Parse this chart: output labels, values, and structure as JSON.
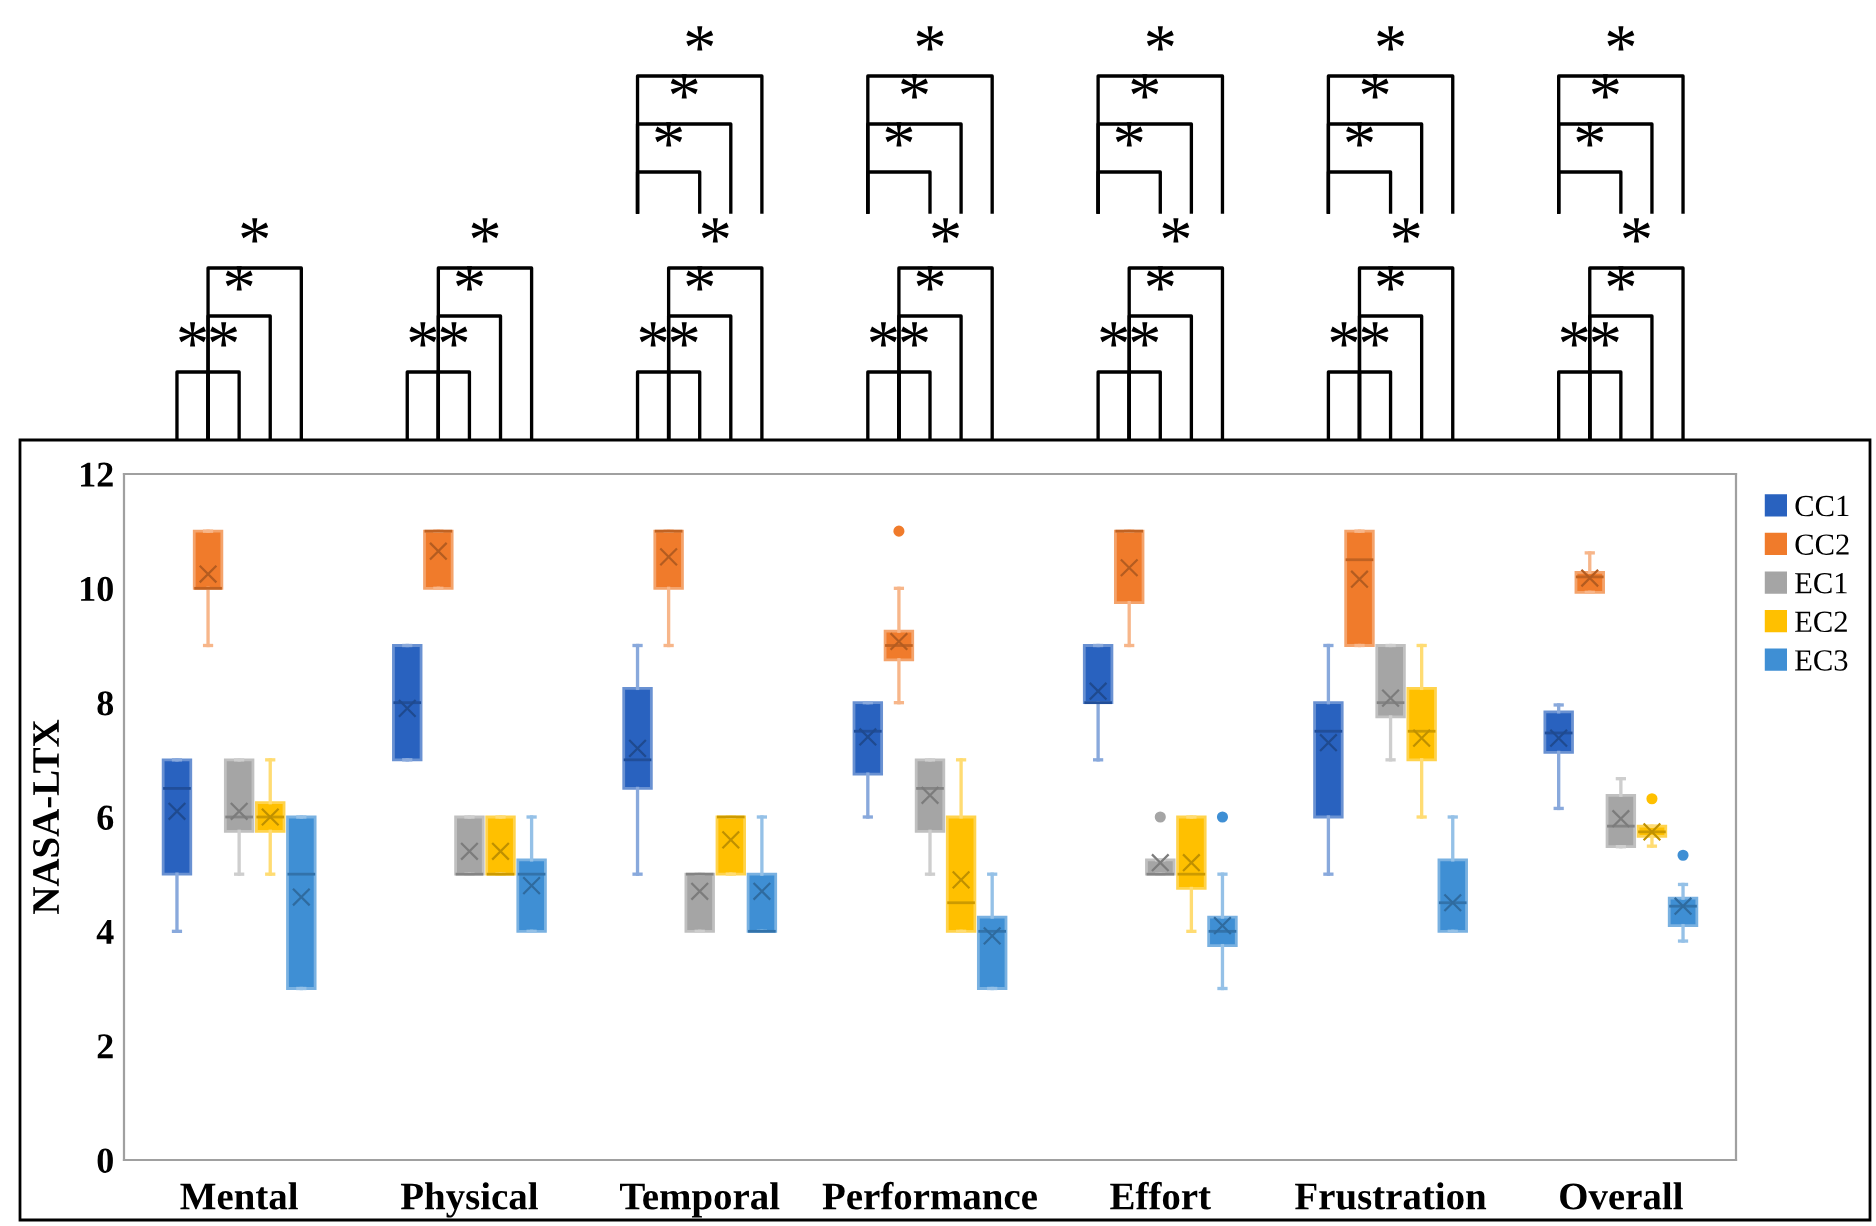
{
  "chart_data": {
    "type": "box",
    "ylabel": "NASA-LTX",
    "categories": [
      "Mental",
      "Physical",
      "Temporal",
      "Performance",
      "Effort",
      "Frustration",
      "Overall"
    ],
    "ylim": [
      0,
      12
    ],
    "yticks": [
      0,
      2,
      4,
      6,
      8,
      10,
      12
    ],
    "grid": false,
    "legend": "top right",
    "series": [
      {
        "name": "CC1",
        "color": "#2962bf",
        "boxes": [
          {
            "low": 4,
            "q1": 5,
            "median": 6.5,
            "q3": 7,
            "high": 7,
            "mean": 6.1
          },
          {
            "low": 7,
            "q1": 7,
            "median": 8,
            "q3": 9,
            "high": 9,
            "mean": 7.9
          },
          {
            "low": 5,
            "q1": 6.5,
            "median": 7,
            "q3": 8.25,
            "high": 9,
            "mean": 7.2
          },
          {
            "low": 6,
            "q1": 6.75,
            "median": 7.5,
            "q3": 8,
            "high": 8,
            "mean": 7.4
          },
          {
            "low": 7,
            "q1": 8,
            "median": 8,
            "q3": 9,
            "high": 9,
            "mean": 8.2
          },
          {
            "low": 5,
            "q1": 6,
            "median": 7.5,
            "q3": 8,
            "high": 9,
            "mean": 7.3
          },
          {
            "low": 6.15,
            "q1": 7.13,
            "median": 7.47,
            "q3": 7.84,
            "high": 7.96,
            "mean": 7.38
          }
        ]
      },
      {
        "name": "CC2",
        "color": "#f07b2b",
        "boxes": [
          {
            "low": 9,
            "q1": 10,
            "median": 10,
            "q3": 11,
            "high": 11,
            "mean": 10.25
          },
          {
            "low": 10,
            "q1": 10,
            "median": 11,
            "q3": 11,
            "high": 11,
            "mean": 10.65
          },
          {
            "low": 9,
            "q1": 10,
            "median": 11,
            "q3": 11,
            "high": 11,
            "mean": 10.55
          },
          {
            "low": 8,
            "q1": 8.75,
            "median": 9,
            "q3": 9.25,
            "high": 10,
            "mean": 9.07,
            "outliers": [
              11
            ]
          },
          {
            "low": 9,
            "q1": 9.75,
            "median": 11,
            "q3": 11,
            "high": 11,
            "mean": 10.36
          },
          {
            "low": 9,
            "q1": 9,
            "median": 10.5,
            "q3": 11,
            "high": 11,
            "mean": 10.16
          },
          {
            "low": 9.93,
            "q1": 9.93,
            "median": 10.2,
            "q3": 10.28,
            "high": 10.62,
            "mean": 10.18
          }
        ]
      },
      {
        "name": "EC1",
        "color": "#a5a5a5",
        "boxes": [
          {
            "low": 5,
            "q1": 5.75,
            "median": 6,
            "q3": 7,
            "high": 7,
            "mean": 6.1
          },
          {
            "low": 5,
            "q1": 5,
            "median": 5,
            "q3": 6,
            "high": 6,
            "mean": 5.4
          },
          {
            "low": 4,
            "q1": 4,
            "median": 5,
            "q3": 5,
            "high": 5,
            "mean": 4.7
          },
          {
            "low": 5,
            "q1": 5.75,
            "median": 6.5,
            "q3": 7,
            "high": 7,
            "mean": 6.38
          },
          {
            "low": 5,
            "q1": 5,
            "median": 5,
            "q3": 5.25,
            "high": 5.25,
            "mean": 5.2,
            "outliers": [
              6
            ]
          },
          {
            "low": 7,
            "q1": 7.75,
            "median": 8,
            "q3": 9,
            "high": 9,
            "mean": 8.08
          },
          {
            "low": 5.48,
            "q1": 5.48,
            "median": 5.84,
            "q3": 6.38,
            "high": 6.67,
            "mean": 5.97
          }
        ]
      },
      {
        "name": "EC2",
        "color": "#ffc000",
        "boxes": [
          {
            "low": 5,
            "q1": 5.75,
            "median": 6,
            "q3": 6.25,
            "high": 7,
            "mean": 6.0
          },
          {
            "low": 5,
            "q1": 5,
            "median": 5,
            "q3": 6,
            "high": 6,
            "mean": 5.4
          },
          {
            "low": 5,
            "q1": 5,
            "median": 6,
            "q3": 6,
            "high": 6,
            "mean": 5.6
          },
          {
            "low": 4,
            "q1": 4,
            "median": 4.5,
            "q3": 6,
            "high": 7,
            "mean": 4.9
          },
          {
            "low": 4,
            "q1": 4.75,
            "median": 5,
            "q3": 6,
            "high": 6,
            "mean": 5.2
          },
          {
            "low": 6,
            "q1": 7,
            "median": 7.5,
            "q3": 8.25,
            "high": 9,
            "mean": 7.38
          },
          {
            "low": 5.49,
            "q1": 5.66,
            "median": 5.74,
            "q3": 5.84,
            "high": 5.84,
            "mean": 5.74,
            "outliers": [
              6.32
            ]
          }
        ]
      },
      {
        "name": "EC3",
        "color": "#3f8fd4",
        "boxes": [
          {
            "low": 3,
            "q1": 3,
            "median": 5,
            "q3": 6,
            "high": 6,
            "mean": 4.6
          },
          {
            "low": 4,
            "q1": 4,
            "median": 5,
            "q3": 5.25,
            "high": 6,
            "mean": 4.8
          },
          {
            "low": 4,
            "q1": 4,
            "median": 4,
            "q3": 5,
            "high": 6,
            "mean": 4.7
          },
          {
            "low": 3,
            "q1": 3,
            "median": 4,
            "q3": 4.25,
            "high": 5,
            "mean": 3.92
          },
          {
            "low": 3,
            "q1": 3.75,
            "median": 4,
            "q3": 4.25,
            "high": 5,
            "mean": 4.1,
            "outliers": [
              6
            ]
          },
          {
            "low": 4,
            "q1": 4,
            "median": 4.5,
            "q3": 5.25,
            "high": 6,
            "mean": 4.5
          },
          {
            "low": 3.83,
            "q1": 4.1,
            "median": 4.44,
            "q3": 4.58,
            "high": 4.82,
            "mean": 4.44,
            "outliers": [
              5.33
            ]
          }
        ]
      }
    ],
    "annotations": [
      "*",
      "*",
      "*",
      "*",
      "*",
      "*",
      "*",
      "*",
      "*",
      "*",
      "*",
      "*",
      "*",
      "*",
      "*",
      "*",
      "*",
      "*",
      "*",
      "*",
      "*",
      "*",
      "*",
      "*",
      "*",
      "*",
      "*",
      "*",
      "*",
      "*",
      "*",
      "*",
      "*",
      "*",
      "*",
      "*",
      "*",
      "*",
      "*",
      "*",
      "*",
      "*",
      "*"
    ]
  }
}
